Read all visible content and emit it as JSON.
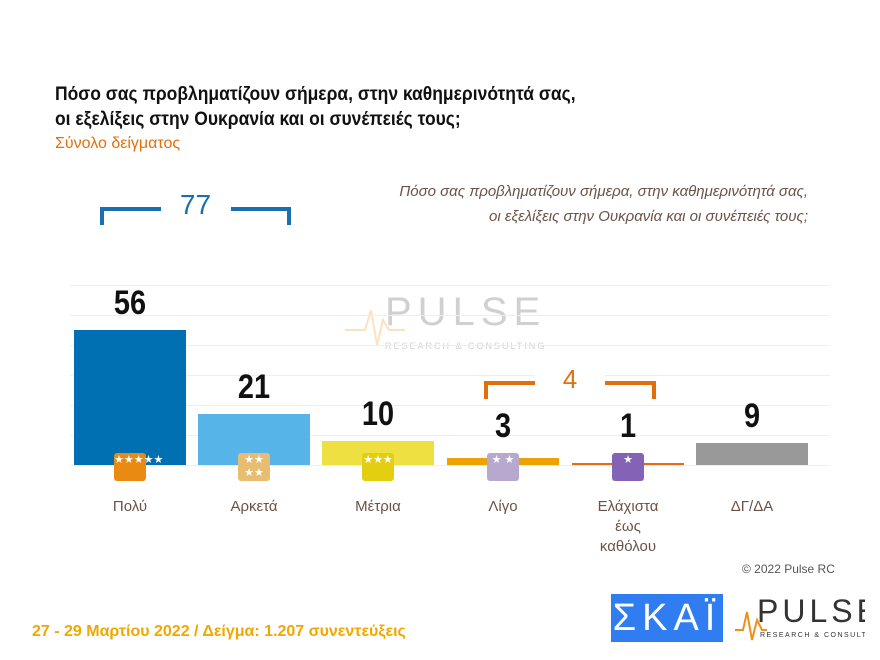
{
  "title_line1": "Πόσο σας προβληματίζουν σήμερα, στην καθημερινότητά σας,",
  "title_line2": "οι εξελίξεις στην Ουκρανία και οι συνέπειές τους;",
  "subtitle": "Σύνολο δείγματος",
  "question_line1": "Πόσο σας προβληματίζουν σήμερα, στην καθημερινότητά σας,",
  "question_line2": "οι εξελίξεις στην Ουκρανία και οι συνέπειές τους;",
  "chart_data": {
    "type": "bar",
    "categories": [
      "Πολύ",
      "Αρκετά",
      "Μέτρια",
      "Λίγο",
      "Ελάχιστα έως καθόλου",
      "ΔΓ/ΔΑ"
    ],
    "category_lines": [
      [
        "Πολύ"
      ],
      [
        "Αρκετά"
      ],
      [
        "Μέτρια"
      ],
      [
        "Λίγο"
      ],
      [
        "Ελάχιστα",
        "έως",
        "καθόλου"
      ],
      [
        "ΔΓ/ΔΑ"
      ]
    ],
    "values": [
      56,
      21,
      10,
      3,
      1,
      9
    ],
    "colors": [
      "#0070b3",
      "#56b4e8",
      "#ede040",
      "#eea200",
      "#e86a10",
      "#999999"
    ],
    "badge_colors": [
      "#ea8a10",
      "#e8bd72",
      "#e3cf10",
      "#b7a8d0",
      "#8462b6",
      null
    ],
    "badge_stars": [
      "★★★★★",
      "★★ ★★",
      "★★★",
      "★ ★",
      "★",
      ""
    ],
    "groups": [
      {
        "label": "77",
        "members": [
          "Πολύ",
          "Αρκετά"
        ],
        "color": "#1a6fb0"
      },
      {
        "label": "4",
        "members": [
          "Λίγο",
          "Ελάχιστα έως καθόλου"
        ],
        "color": "#e0700c"
      }
    ],
    "ylim": [
      0,
      60
    ]
  },
  "footer": "27 - 29  Μαρτίου  2022  /  Δείγμα:  1.207 συνεντεύξεις",
  "copyright": "© 2022 Pulse RC",
  "logos": {
    "skai": "ΣΚΑΪ",
    "pulse": "PULSE",
    "pulse_sub": "RESEARCH & CONSULTING"
  }
}
